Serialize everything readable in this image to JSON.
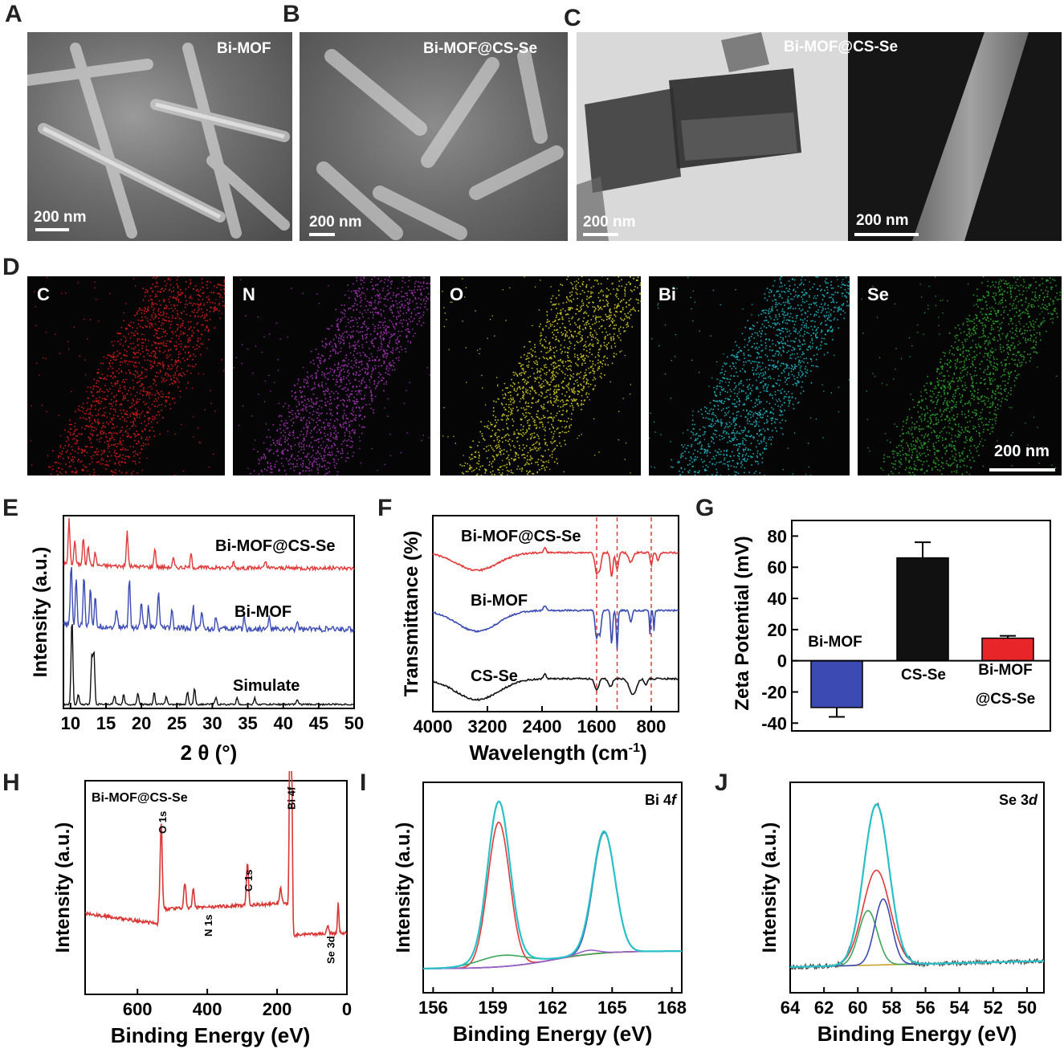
{
  "panels": {
    "A": {
      "letter": "A",
      "label": "Bi-MOF",
      "scale": "200 nm"
    },
    "B": {
      "letter": "B",
      "label": "Bi-MOF@CS-Se",
      "scale": "200 nm"
    },
    "C": {
      "letter": "C",
      "label": "Bi-MOF@CS-Se",
      "scale_left": "200 nm",
      "scale_right": "200 nm"
    },
    "D": {
      "letter": "D",
      "maps": [
        {
          "element": "C",
          "color": "#e8201c"
        },
        {
          "element": "N",
          "color": "#b536c8"
        },
        {
          "element": "O",
          "color": "#e4e02a"
        },
        {
          "element": "Bi",
          "color": "#21c7d3"
        },
        {
          "element": "Se",
          "color": "#2fb52f"
        }
      ],
      "scale": "200 nm"
    },
    "E": {
      "letter": "E"
    },
    "F": {
      "letter": "F"
    },
    "G": {
      "letter": "G"
    },
    "H": {
      "letter": "H"
    },
    "I": {
      "letter": "I"
    },
    "J": {
      "letter": "J"
    }
  },
  "colors": {
    "red": "#e03a3a",
    "blue": "#3b4bb3",
    "black": "#111111",
    "cyan": "#2ac0c8",
    "green": "#3fa45b",
    "olive": "#c7a32a",
    "purple": "#9a5fc8"
  },
  "chart_data": [
    {
      "panel": "E",
      "type": "line",
      "xlabel": "2 θ (°)",
      "ylabel": "Intensity (a.u.)",
      "xlim": [
        9,
        50
      ],
      "xticks": [
        "10",
        "15",
        "20",
        "25",
        "30",
        "35",
        "40",
        "45",
        "50"
      ],
      "series": [
        {
          "name": "Bi-MOF@CS-Se",
          "color": "#e03a3a",
          "peaks": [
            [
              9.8,
              1.0
            ],
            [
              10.6,
              0.55
            ],
            [
              11.8,
              0.65
            ],
            [
              12.5,
              0.45
            ],
            [
              13.5,
              0.3
            ],
            [
              18.0,
              0.8
            ],
            [
              21.9,
              0.45
            ],
            [
              24.5,
              0.2
            ],
            [
              27.0,
              0.3
            ],
            [
              33.0,
              0.15
            ],
            [
              37.5,
              0.15
            ]
          ]
        },
        {
          "name": "Bi-MOF",
          "color": "#3b4bb3",
          "peaks": [
            [
              10.1,
              1.0
            ],
            [
              10.8,
              0.75
            ],
            [
              11.9,
              0.85
            ],
            [
              12.8,
              0.65
            ],
            [
              13.5,
              0.45
            ],
            [
              16.5,
              0.3
            ],
            [
              18.3,
              0.8
            ],
            [
              20.0,
              0.45
            ],
            [
              21.0,
              0.35
            ],
            [
              22.4,
              0.6
            ],
            [
              24.3,
              0.3
            ],
            [
              27.3,
              0.35
            ],
            [
              28.5,
              0.3
            ],
            [
              30.5,
              0.2
            ],
            [
              34.5,
              0.2
            ],
            [
              38.0,
              0.2
            ],
            [
              42.0,
              0.15
            ]
          ]
        },
        {
          "name": "Simulate",
          "color": "#111111",
          "peaks": [
            [
              10.2,
              1.0
            ],
            [
              11.1,
              0.12
            ],
            [
              13.0,
              0.55
            ],
            [
              13.3,
              0.6
            ],
            [
              16.2,
              0.1
            ],
            [
              17.5,
              0.12
            ],
            [
              19.5,
              0.14
            ],
            [
              21.8,
              0.14
            ],
            [
              23.5,
              0.1
            ],
            [
              26.5,
              0.15
            ],
            [
              27.5,
              0.18
            ],
            [
              30.5,
              0.08
            ],
            [
              33.5,
              0.08
            ],
            [
              36.0,
              0.07
            ],
            [
              42.0,
              0.06
            ]
          ]
        }
      ]
    },
    {
      "panel": "F",
      "type": "line",
      "xlabel": "Wavelength (cm-1)",
      "xlabel_main": "Wavelength (cm",
      "xlabel_sup": "-1",
      "xlabel_end": ")",
      "ylabel": "Transmittance (%)",
      "xlim": [
        4000,
        400
      ],
      "xticks": [
        "4000",
        "3200",
        "2400",
        "1600",
        "800"
      ],
      "dashed_lines_x": [
        1600,
        1300,
        800
      ],
      "series": [
        {
          "name": "Bi-MOF@CS-Se",
          "color": "#e03a3a"
        },
        {
          "name": "Bi-MOF",
          "color": "#3b4bb3"
        },
        {
          "name": "CS-Se",
          "color": "#111111"
        }
      ]
    },
    {
      "panel": "G",
      "type": "bar",
      "ylabel": "Zeta Potential (mV)",
      "ylim": [
        -45,
        90
      ],
      "yticks": [
        "80",
        "60",
        "40",
        "20",
        "0",
        "-20",
        "-40"
      ],
      "categories": [
        "Bi-MOF",
        "CS-Se",
        "Bi-MOF @CS-Se"
      ],
      "category_lines": [
        [
          "Bi-MOF"
        ],
        [
          "CS-Se"
        ],
        [
          "Bi-MOF",
          "@CS-Se"
        ]
      ],
      "values": [
        -30,
        66,
        14.5
      ],
      "errors": [
        6,
        10,
        1.5
      ],
      "colors": [
        "#3b4bb3",
        "#111111",
        "#e8262a"
      ]
    },
    {
      "panel": "H",
      "type": "line",
      "title": "Bi-MOF@CS-Se",
      "xlabel": "Binding Energy (eV)",
      "ylabel": "Intensity (a.u.)",
      "xlim": [
        750,
        0
      ],
      "xticks": [
        "600",
        "400",
        "200",
        "0"
      ],
      "annotations": [
        "O 1s",
        "N 1s",
        "C 1s",
        "Bi 4f",
        "Se 3d"
      ],
      "series": [
        {
          "color": "#d93636"
        }
      ]
    },
    {
      "panel": "I",
      "type": "line",
      "title_main": "Bi 4",
      "title_italic": "f",
      "xlabel": "Binding Energy (eV)",
      "ylabel": "Intensity (a.u.)",
      "xlim": [
        155.5,
        168.5
      ],
      "xticks": [
        "156",
        "159",
        "162",
        "165",
        "168"
      ],
      "peaks": [
        159.3,
        164.6
      ]
    },
    {
      "panel": "J",
      "type": "line",
      "title_main": "Se 3",
      "title_italic": "d",
      "xlabel": "Binding Energy (eV)",
      "ylabel": "Intensity (a.u.)",
      "xlim": [
        64,
        49
      ],
      "xticks": [
        "64",
        "62",
        "60",
        "58",
        "56",
        "54",
        "52",
        "50"
      ],
      "peaks": [
        59.3,
        58.5
      ]
    }
  ]
}
